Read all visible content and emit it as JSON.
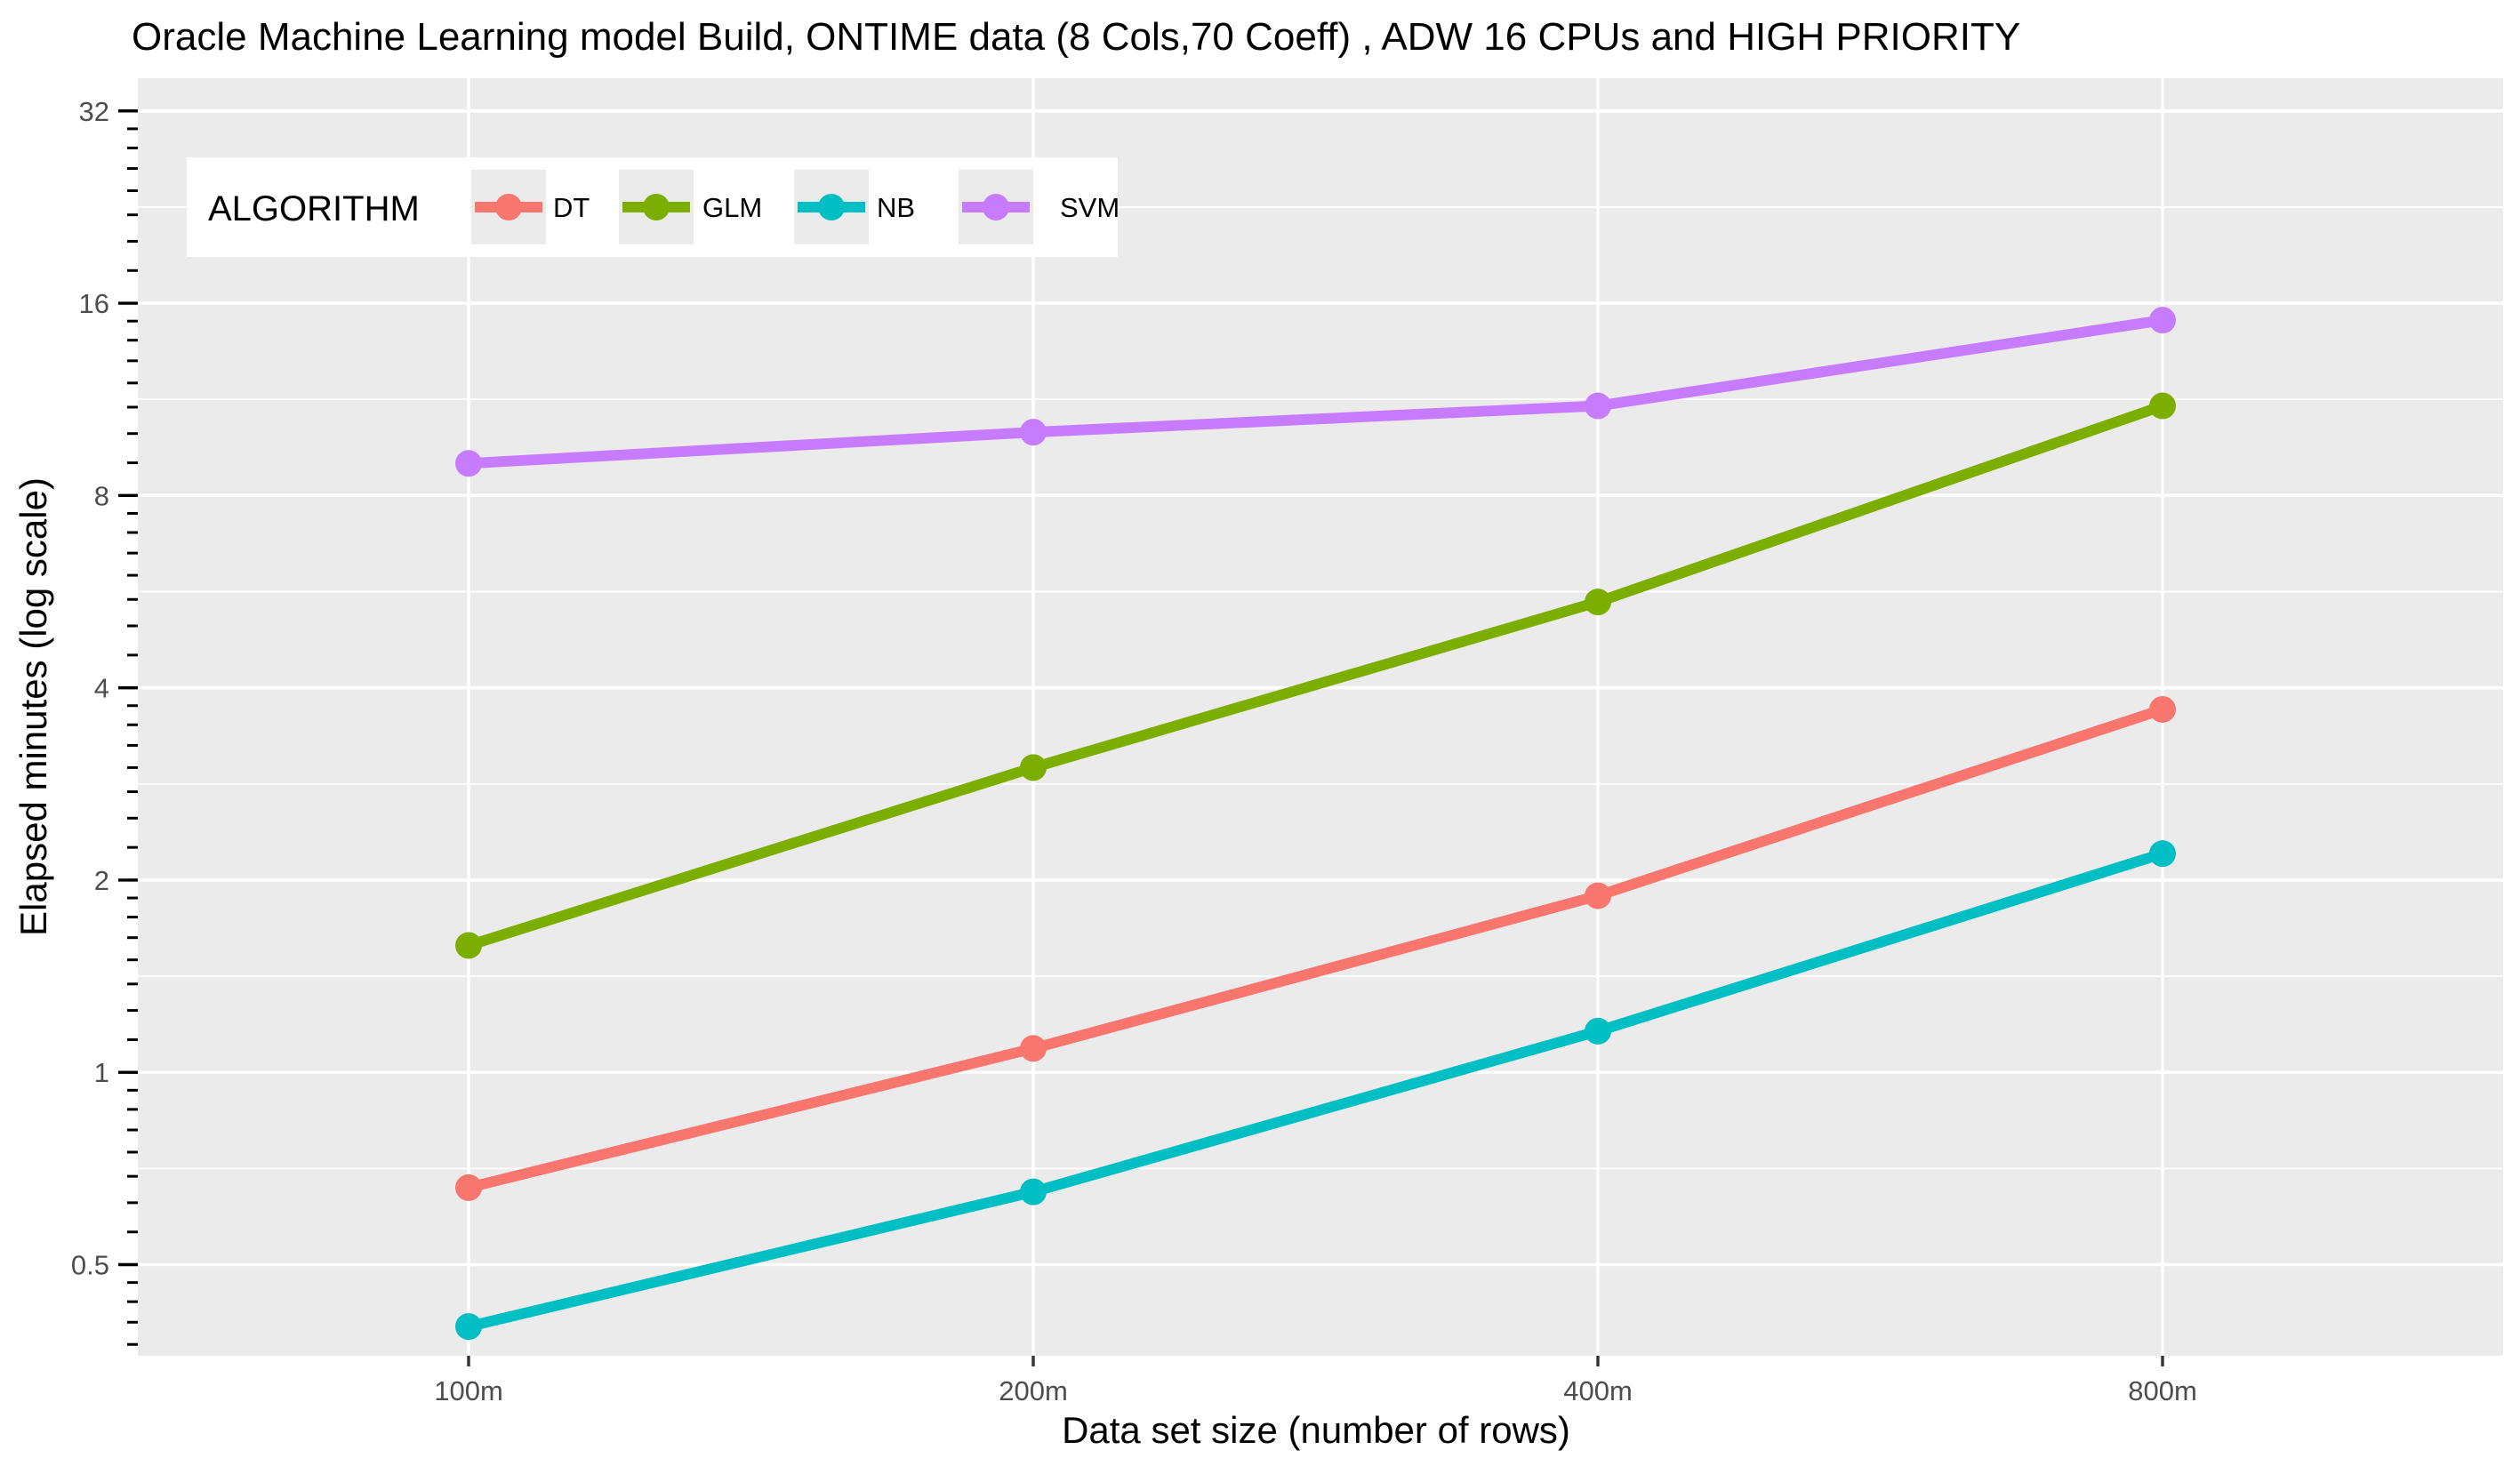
{
  "chart_data": {
    "type": "line",
    "title": "Oracle Machine Learning model Build, ONTIME data (8 Cols,70 Coeff) , ADW 16 CPUs and HIGH PRIORITY",
    "xlabel": "Data set size (number of rows)",
    "ylabel": "Elapsed minutes (log scale)",
    "y_scale": "log2",
    "ylim": [
      0.36,
      36
    ],
    "categories": [
      "100m",
      "200m",
      "400m",
      "800m"
    ],
    "y_ticks": [
      0.5,
      1,
      2,
      4,
      8,
      16,
      32
    ],
    "y_tick_labels": [
      "0.5",
      "1",
      "2",
      "4",
      "8",
      "16",
      "32"
    ],
    "grid": true,
    "legend": {
      "title": "ALGORITHM",
      "position": "top-left",
      "orientation": "horizontal"
    },
    "series": [
      {
        "name": "DT",
        "color": "#F8766D",
        "values": [
          0.66,
          1.09,
          1.89,
          3.7
        ]
      },
      {
        "name": "GLM",
        "color": "#7CAE00",
        "values": [
          1.58,
          3.0,
          5.45,
          11.05
        ]
      },
      {
        "name": "NB",
        "color": "#00BFC4",
        "values": [
          0.4,
          0.65,
          1.16,
          2.2
        ]
      },
      {
        "name": "SVM",
        "color": "#C77CFF",
        "values": [
          8.98,
          10.05,
          11.05,
          15.05
        ]
      }
    ]
  }
}
